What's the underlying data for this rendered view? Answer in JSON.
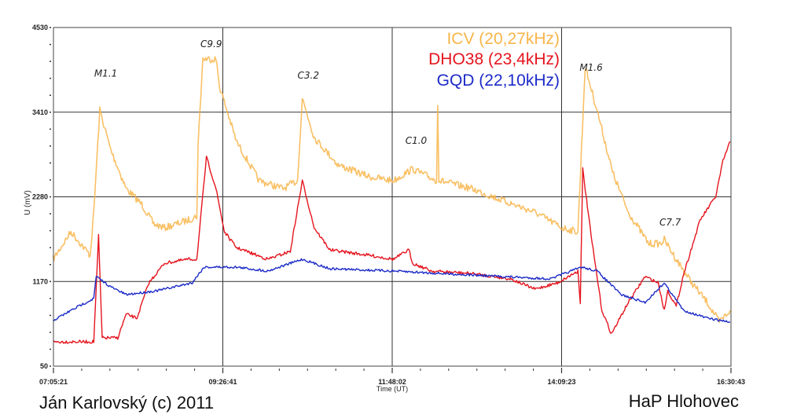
{
  "chart_data": {
    "type": "line",
    "xlabel": "Time (UT)",
    "ylabel": "U (mV)",
    "xlim": [
      "07:05:21",
      "16:30:43"
    ],
    "ylim": [
      50,
      4530
    ],
    "x_tick_labels": [
      "07:05:21",
      "09:26:41",
      "11:48:02",
      "14:09:23",
      "16:30:43"
    ],
    "y_tick_labels": [
      "4530",
      "3410",
      "2280",
      "1170",
      "50"
    ],
    "grid": true,
    "legend_placement": "top-center-right",
    "series": [
      {
        "name": "ICV (20,27kHz)",
        "color": "#f8b54a",
        "x": [
          "07:05",
          "07:20",
          "07:36",
          "07:39",
          "07:44",
          "07:53",
          "08:06",
          "08:19",
          "08:29",
          "08:38",
          "08:58",
          "09:05",
          "09:06",
          "09:10",
          "09:21",
          "09:24",
          "09:38",
          "09:57",
          "10:17",
          "10:29",
          "10:33",
          "10:43",
          "11:03",
          "11:29",
          "11:49",
          "12:05",
          "12:25",
          "12:26",
          "12:27",
          "12:28",
          "12:54",
          "13:20",
          "13:47",
          "14:10",
          "14:23",
          "14:29",
          "14:39",
          "14:52",
          "15:05",
          "15:22",
          "15:32",
          "15:35",
          "15:45",
          "15:58",
          "16:11",
          "16:21",
          "16:30"
        ],
        "y": [
          1464,
          1827,
          1516,
          2087,
          3438,
          2919,
          2399,
          2191,
          1931,
          1879,
          1983,
          2035,
          2971,
          4114,
          4114,
          3750,
          3023,
          2503,
          2399,
          2503,
          3594,
          3075,
          2711,
          2555,
          2503,
          2659,
          2503,
          3542,
          2503,
          2503,
          2399,
          2243,
          2087,
          1879,
          1827,
          4010,
          3438,
          2607,
          2087,
          1671,
          1671,
          1723,
          1464,
          1152,
          892,
          632,
          788
        ]
      },
      {
        "name": "DHO38 (23,4kHz)",
        "color": "#e5141e",
        "x": [
          "07:05",
          "07:39",
          "07:43",
          "07:46",
          "07:59",
          "08:06",
          "08:15",
          "08:25",
          "08:38",
          "08:58",
          "09:05",
          "09:13",
          "09:21",
          "09:28",
          "09:38",
          "10:04",
          "10:23",
          "10:33",
          "10:43",
          "10:56",
          "11:29",
          "11:49",
          "12:02",
          "12:05",
          "12:21",
          "12:54",
          "13:27",
          "13:47",
          "14:06",
          "14:23",
          "14:25",
          "14:27",
          "14:34",
          "14:43",
          "14:51",
          "15:05",
          "15:19",
          "15:30",
          "15:35",
          "15:38",
          "15:45",
          "15:51",
          "16:05",
          "16:18",
          "16:24",
          "16:30"
        ],
        "y": [
          372,
          372,
          1775,
          424,
          424,
          736,
          684,
          1152,
          1412,
          1464,
          1464,
          2815,
          2399,
          1827,
          1619,
          1464,
          1568,
          2503,
          1879,
          1588,
          1516,
          1464,
          1588,
          1412,
          1308,
          1276,
          1204,
          1069,
          1152,
          1308,
          892,
          2659,
          1775,
          788,
          476,
          892,
          1235,
          1152,
          788,
          1048,
          840,
          1256,
          1983,
          2295,
          2763,
          3023
        ]
      },
      {
        "name": "GQD (22,10kHz)",
        "color": "#1c2bc8",
        "x": [
          "07:05",
          "07:26",
          "07:39",
          "07:41",
          "07:53",
          "08:06",
          "08:32",
          "09:01",
          "09:11",
          "09:38",
          "10:04",
          "10:33",
          "10:56",
          "11:49",
          "12:54",
          "14:00",
          "14:26",
          "14:39",
          "14:59",
          "15:19",
          "15:35",
          "15:51",
          "16:11",
          "16:30"
        ],
        "y": [
          653,
          840,
          944,
          1235,
          1100,
          996,
          1048,
          1152,
          1360,
          1360,
          1308,
          1464,
          1339,
          1308,
          1256,
          1204,
          1360,
          1308,
          996,
          892,
          1152,
          788,
          684,
          632
        ]
      }
    ],
    "annotations": [
      {
        "text": "M1.1",
        "x": "07:49",
        "y": 3880
      },
      {
        "text": "C9.9",
        "x": "09:17",
        "y": 4270
      },
      {
        "text": "C3.2",
        "x": "10:38",
        "y": 3854
      },
      {
        "text": "C1.0",
        "x": "12:08",
        "y": 2991
      },
      {
        "text": "M1.6",
        "x": "14:34",
        "y": 3958
      },
      {
        "text": "C7.7",
        "x": "15:40",
        "y": 1910
      }
    ]
  },
  "credits": {
    "author": "Ján Karlovský (c) 2011",
    "observatory": "HaP Hlohovec"
  }
}
